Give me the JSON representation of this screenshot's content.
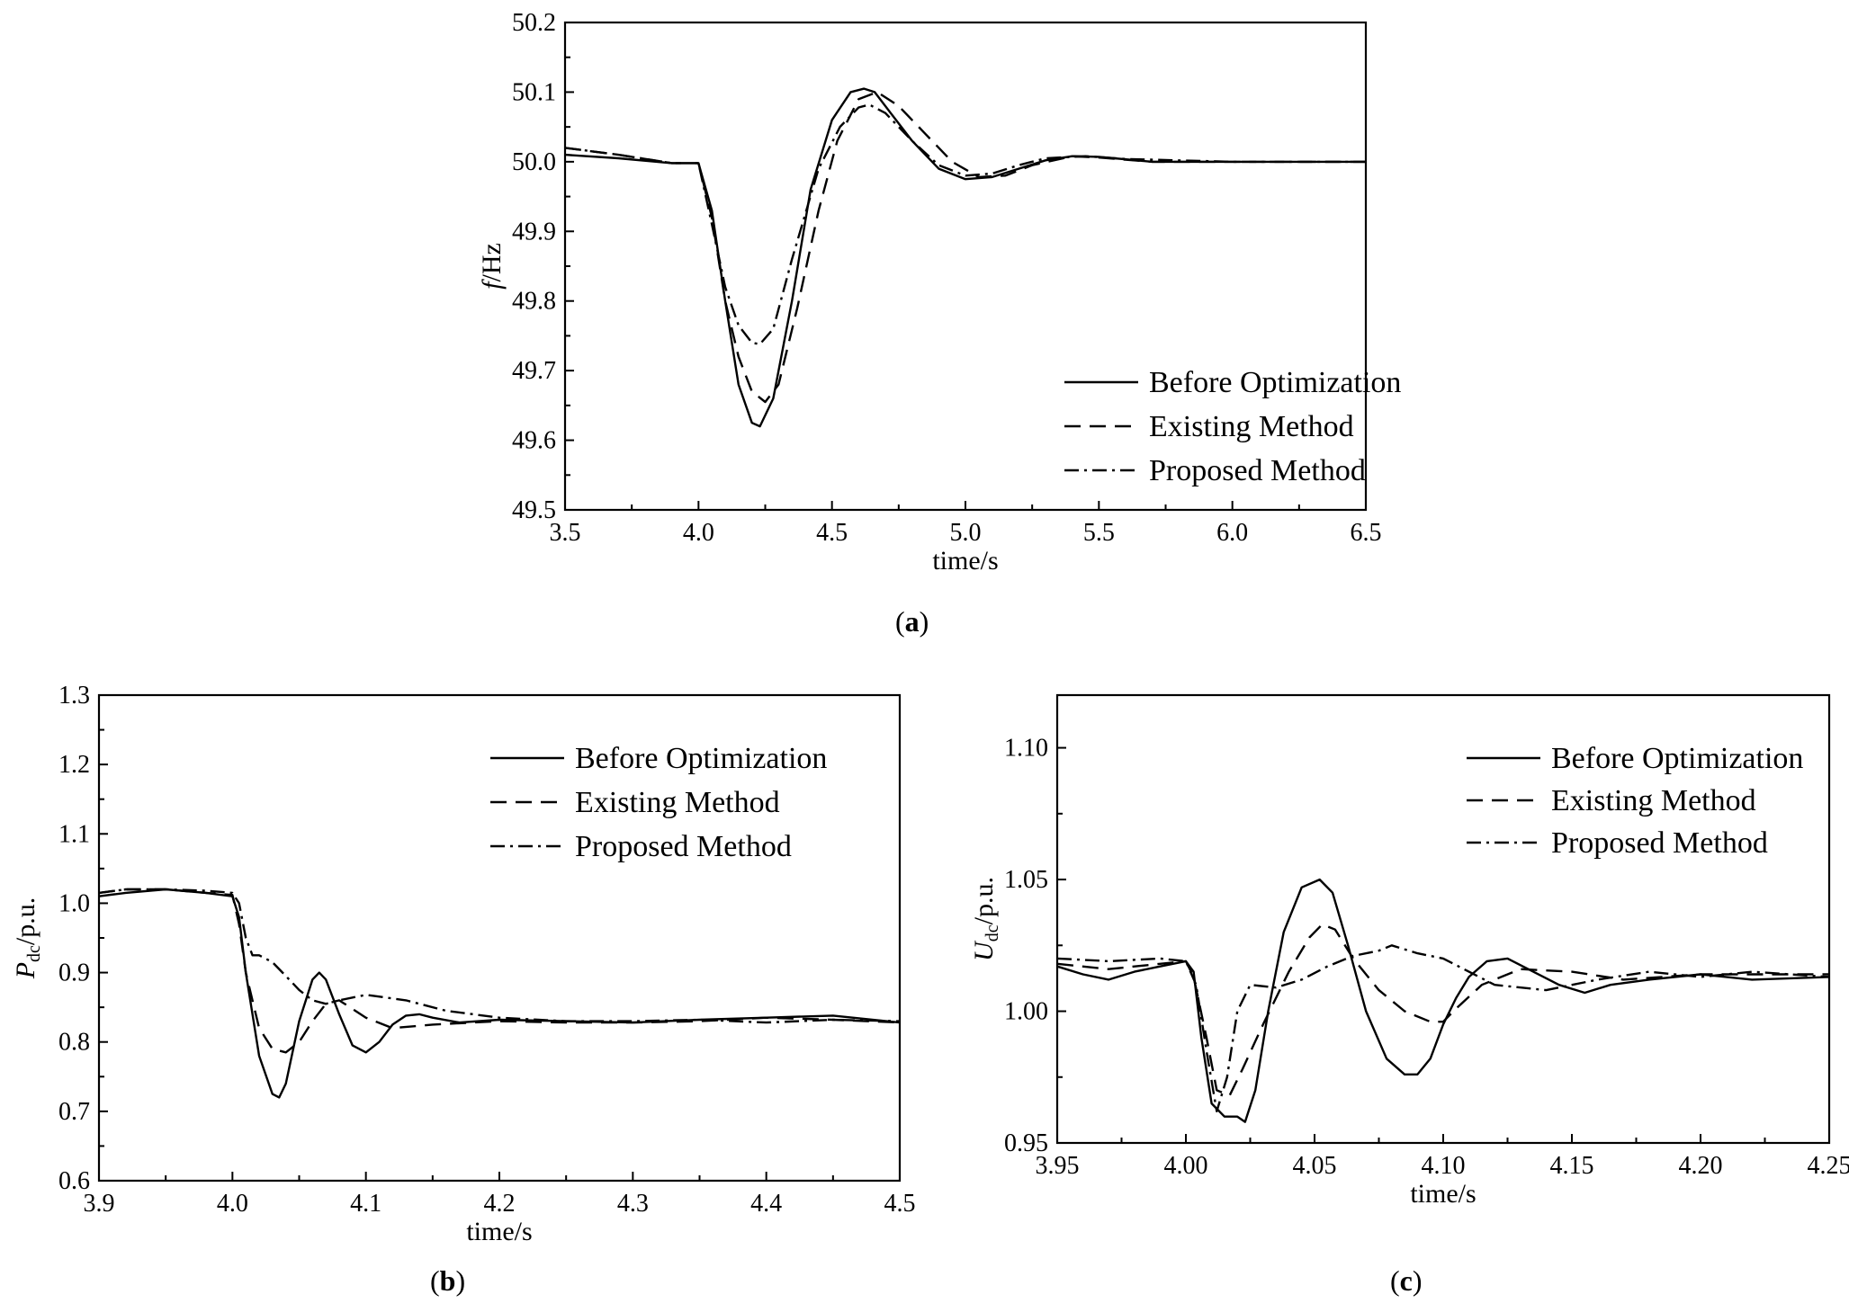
{
  "chart_data": [
    {
      "type": "line",
      "panel": "a",
      "caption_letter": "a",
      "xlabel": "time/s",
      "ylabel": "f/Hz",
      "ylabel_italic": "f",
      "ylabel_rest": "/Hz",
      "xlim": [
        3.5,
        6.5
      ],
      "ylim": [
        49.5,
        50.2
      ],
      "xticks": [
        "3.5",
        "4.0",
        "4.5",
        "5.0",
        "5.5",
        "6.0",
        "6.5"
      ],
      "yticks": [
        "49.5",
        "49.6",
        "49.7",
        "49.8",
        "49.9",
        "50.0",
        "50.1",
        "50.2"
      ],
      "legend_position": "bottom-right",
      "series": [
        {
          "name": "Before Optimization",
          "style": "solid",
          "x": [
            3.5,
            3.7,
            3.9,
            4.0,
            4.05,
            4.1,
            4.15,
            4.2,
            4.23,
            4.28,
            4.35,
            4.42,
            4.5,
            4.57,
            4.62,
            4.66,
            4.72,
            4.8,
            4.9,
            5.0,
            5.1,
            5.2,
            5.3,
            5.4,
            5.5,
            5.7,
            6.0,
            6.5
          ],
          "y": [
            50.01,
            50.005,
            49.998,
            49.998,
            49.93,
            49.8,
            49.68,
            49.625,
            49.62,
            49.66,
            49.8,
            49.96,
            50.06,
            50.1,
            50.105,
            50.1,
            50.07,
            50.03,
            49.99,
            49.975,
            49.978,
            49.99,
            50.002,
            50.008,
            50.007,
            50.0,
            50.0,
            50.0
          ]
        },
        {
          "name": "Existing Method",
          "style": "dashed",
          "x": [
            3.5,
            3.7,
            3.9,
            4.0,
            4.05,
            4.1,
            4.15,
            4.2,
            4.25,
            4.3,
            4.37,
            4.45,
            4.52,
            4.6,
            4.67,
            4.75,
            4.85,
            4.95,
            5.05,
            5.15,
            5.25,
            5.4,
            5.5,
            5.7,
            6.0,
            6.5
          ],
          "y": [
            50.02,
            50.01,
            49.998,
            49.998,
            49.92,
            49.8,
            49.72,
            49.67,
            49.655,
            49.68,
            49.79,
            49.93,
            50.03,
            50.09,
            50.1,
            50.08,
            50.04,
            50.0,
            49.978,
            49.98,
            49.995,
            50.008,
            50.006,
            50.0,
            50.0,
            50.0
          ]
        },
        {
          "name": "Proposed Method",
          "style": "dashdot",
          "x": [
            3.5,
            3.7,
            3.9,
            4.0,
            4.05,
            4.1,
            4.15,
            4.2,
            4.23,
            4.28,
            4.35,
            4.45,
            4.53,
            4.6,
            4.64,
            4.7,
            4.8,
            4.9,
            5.0,
            5.1,
            5.2,
            5.3,
            5.45,
            5.6,
            6.0,
            6.5
          ],
          "y": [
            50.02,
            50.01,
            49.998,
            49.998,
            49.91,
            49.82,
            49.765,
            49.74,
            49.738,
            49.76,
            49.86,
            49.99,
            50.05,
            50.078,
            50.082,
            50.07,
            50.03,
            49.995,
            49.98,
            49.983,
            49.995,
            50.005,
            50.008,
            50.004,
            50.0,
            50.0
          ]
        }
      ]
    },
    {
      "type": "line",
      "panel": "b",
      "caption_letter": "b",
      "xlabel": "time/s",
      "ylabel": "Pdc/p.u.",
      "ylabel_italic": "P",
      "ylabel_sub": "dc",
      "ylabel_rest": "/p.u.",
      "xlim": [
        3.9,
        4.5
      ],
      "ylim": [
        0.6,
        1.3
      ],
      "xticks": [
        "3.9",
        "4.0",
        "4.1",
        "4.2",
        "4.3",
        "4.4",
        "4.5"
      ],
      "yticks": [
        "0.6",
        "0.7",
        "0.8",
        "0.9",
        "1.0",
        "1.1",
        "1.2",
        "1.3"
      ],
      "legend_position": "top-right",
      "series": [
        {
          "name": "Before Optimization",
          "style": "solid",
          "x": [
            3.9,
            3.92,
            3.95,
            3.98,
            4.0,
            4.005,
            4.01,
            4.02,
            4.03,
            4.035,
            4.04,
            4.05,
            4.06,
            4.065,
            4.07,
            4.08,
            4.09,
            4.1,
            4.11,
            4.12,
            4.13,
            4.14,
            4.15,
            4.17,
            4.2,
            4.25,
            4.3,
            4.35,
            4.4,
            4.45,
            4.5
          ],
          "y": [
            1.01,
            1.015,
            1.02,
            1.015,
            1.01,
            0.98,
            0.9,
            0.78,
            0.725,
            0.72,
            0.74,
            0.83,
            0.89,
            0.9,
            0.89,
            0.84,
            0.795,
            0.785,
            0.8,
            0.825,
            0.838,
            0.84,
            0.835,
            0.828,
            0.832,
            0.83,
            0.828,
            0.832,
            0.835,
            0.838,
            0.828
          ]
        },
        {
          "name": "Existing Method",
          "style": "dashed",
          "x": [
            3.9,
            3.92,
            3.95,
            3.98,
            4.0,
            4.005,
            4.01,
            4.02,
            4.03,
            4.04,
            4.05,
            4.06,
            4.07,
            4.08,
            4.1,
            4.12,
            4.15,
            4.2,
            4.25,
            4.3,
            4.35,
            4.4,
            4.45,
            4.5
          ],
          "y": [
            1.015,
            1.02,
            1.02,
            1.015,
            1.012,
            0.97,
            0.9,
            0.82,
            0.79,
            0.785,
            0.8,
            0.83,
            0.855,
            0.86,
            0.835,
            0.82,
            0.825,
            0.83,
            0.828,
            0.828,
            0.83,
            0.835,
            0.832,
            0.828
          ]
        },
        {
          "name": "Proposed Method",
          "style": "dashdot",
          "x": [
            3.9,
            3.92,
            3.95,
            3.98,
            4.0,
            4.005,
            4.01,
            4.015,
            4.02,
            4.03,
            4.04,
            4.05,
            4.06,
            4.07,
            4.08,
            4.1,
            4.13,
            4.16,
            4.2,
            4.25,
            4.3,
            4.35,
            4.4,
            4.45,
            4.5
          ],
          "y": [
            1.015,
            1.02,
            1.02,
            1.018,
            1.015,
            1.0,
            0.95,
            0.925,
            0.925,
            0.915,
            0.895,
            0.875,
            0.86,
            0.855,
            0.86,
            0.868,
            0.86,
            0.845,
            0.835,
            0.83,
            0.83,
            0.832,
            0.828,
            0.832,
            0.83
          ]
        }
      ]
    },
    {
      "type": "line",
      "panel": "c",
      "caption_letter": "c",
      "xlabel": "time/s",
      "ylabel": "Udc/p.u.",
      "ylabel_italic": "U",
      "ylabel_sub": "dc",
      "ylabel_rest": "/p.u.",
      "xlim": [
        3.95,
        4.25
      ],
      "ylim": [
        0.95,
        1.12
      ],
      "xticks": [
        "3.95",
        "4.00",
        "4.05",
        "4.10",
        "4.15",
        "4.20",
        "4.25"
      ],
      "yticks": [
        "0.95",
        "1.00",
        "1.05",
        "1.10"
      ],
      "ytick_values": [
        0.95,
        1.0,
        1.05,
        1.1
      ],
      "legend_position": "top-right",
      "series": [
        {
          "name": "Before Optimization",
          "style": "solid",
          "x": [
            3.95,
            3.96,
            3.97,
            3.98,
            3.99,
            4.0,
            4.003,
            4.006,
            4.01,
            4.015,
            4.02,
            4.023,
            4.027,
            4.032,
            4.038,
            4.045,
            4.052,
            4.057,
            4.063,
            4.07,
            4.078,
            4.085,
            4.09,
            4.095,
            4.1,
            4.105,
            4.11,
            4.117,
            4.125,
            4.135,
            4.145,
            4.155,
            4.165,
            4.18,
            4.2,
            4.22,
            4.25
          ],
          "y": [
            1.017,
            1.014,
            1.012,
            1.015,
            1.017,
            1.019,
            1.015,
            0.99,
            0.965,
            0.96,
            0.96,
            0.958,
            0.97,
            1.0,
            1.03,
            1.047,
            1.05,
            1.045,
            1.025,
            1.0,
            0.982,
            0.976,
            0.976,
            0.982,
            0.995,
            1.005,
            1.013,
            1.019,
            1.02,
            1.015,
            1.01,
            1.007,
            1.01,
            1.012,
            1.014,
            1.012,
            1.013
          ]
        },
        {
          "name": "Existing Method",
          "style": "dashed",
          "x": [
            3.95,
            3.97,
            3.99,
            4.0,
            4.003,
            4.008,
            4.012,
            4.017,
            4.022,
            4.03,
            4.04,
            4.048,
            4.053,
            4.058,
            4.065,
            4.075,
            4.085,
            4.095,
            4.1,
            4.105,
            4.115,
            4.13,
            4.15,
            4.17,
            4.2,
            4.25
          ],
          "y": [
            1.018,
            1.016,
            1.018,
            1.019,
            1.013,
            0.99,
            0.97,
            0.968,
            0.978,
            0.995,
            1.015,
            1.028,
            1.033,
            1.031,
            1.02,
            1.008,
            1.0,
            0.996,
            0.996,
            1.001,
            1.01,
            1.016,
            1.015,
            1.012,
            1.014,
            1.014
          ]
        },
        {
          "name": "Proposed Method",
          "style": "dashdot",
          "x": [
            3.95,
            3.97,
            3.99,
            4.0,
            4.004,
            4.008,
            4.012,
            4.016,
            4.02,
            4.025,
            4.035,
            4.045,
            4.055,
            4.065,
            4.075,
            4.08,
            4.09,
            4.1,
            4.11,
            4.12,
            4.14,
            4.16,
            4.18,
            4.2,
            4.22,
            4.25
          ],
          "y": [
            1.02,
            1.019,
            1.02,
            1.019,
            1.01,
            0.985,
            0.962,
            0.975,
            1.0,
            1.01,
            1.009,
            1.012,
            1.017,
            1.021,
            1.023,
            1.025,
            1.022,
            1.02,
            1.015,
            1.01,
            1.008,
            1.012,
            1.015,
            1.013,
            1.015,
            1.013
          ]
        }
      ]
    }
  ]
}
